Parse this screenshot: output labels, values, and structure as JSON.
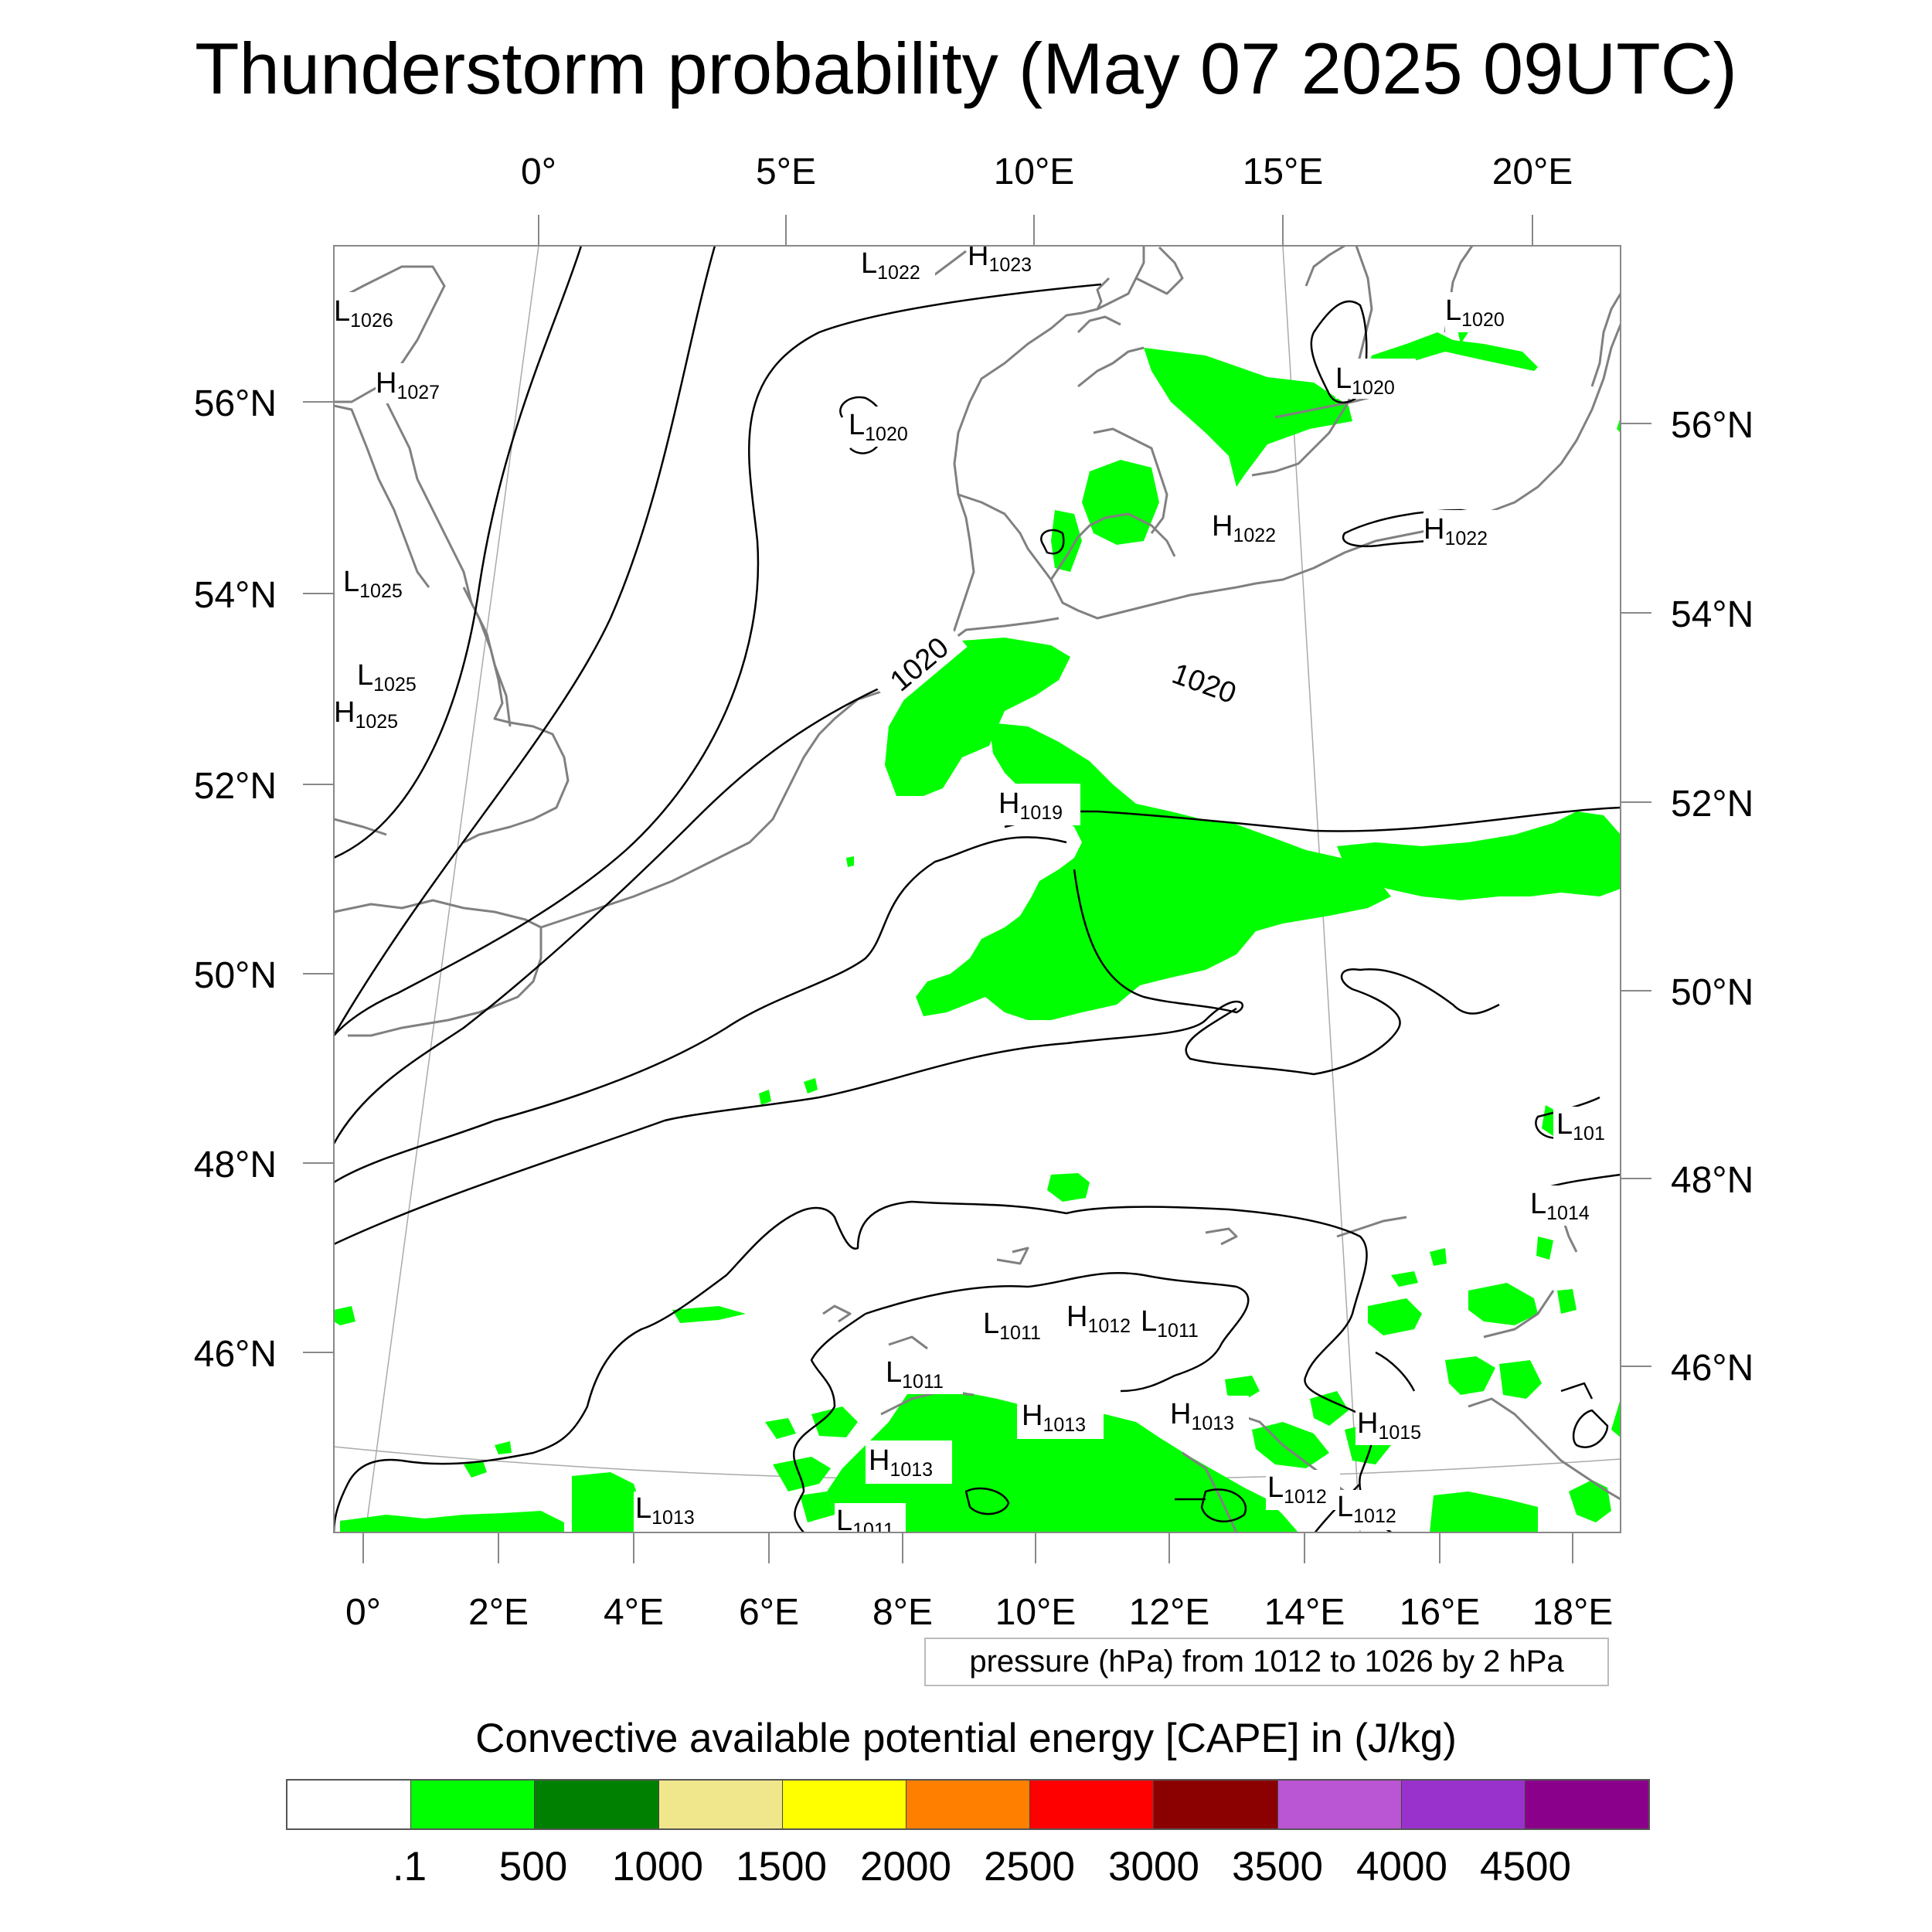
{
  "title": "Thunderstorm probability (May 07 2025 09UTC)",
  "axes": {
    "top_lon_labels": [
      "0°",
      "5°E",
      "10°E",
      "15°E",
      "20°E"
    ],
    "bottom_lon_labels": [
      "0°",
      "2°E",
      "4°E",
      "6°E",
      "8°E",
      "10°E",
      "12°E",
      "14°E",
      "16°E",
      "18°E"
    ],
    "left_lat_labels": [
      "56°N",
      "54°N",
      "52°N",
      "50°N",
      "48°N",
      "46°N"
    ],
    "right_lat_labels": [
      "56°N",
      "54°N",
      "52°N",
      "50°N",
      "48°N",
      "46°N"
    ]
  },
  "pressure_centers": [
    {
      "t": "L",
      "v": "1022"
    },
    {
      "t": "H",
      "v": "1023"
    },
    {
      "t": "L",
      "v": "1026"
    },
    {
      "t": "H",
      "v": "1027"
    },
    {
      "t": "L",
      "v": "1020"
    },
    {
      "t": "L",
      "v": "1020"
    },
    {
      "t": "L",
      "v": "1020"
    },
    {
      "t": "H",
      "v": "1022"
    },
    {
      "t": "H",
      "v": "1022"
    },
    {
      "t": "L",
      "v": "1025"
    },
    {
      "t": "L",
      "v": "1025"
    },
    {
      "t": "H",
      "v": "1025"
    },
    {
      "t": "H",
      "v": "1019"
    },
    {
      "t": "L",
      "v": "101"
    },
    {
      "t": "L",
      "v": "1014"
    },
    {
      "t": "L",
      "v": "1011"
    },
    {
      "t": "H",
      "v": "1012"
    },
    {
      "t": "L",
      "v": "1011"
    },
    {
      "t": "L",
      "v": "1011"
    },
    {
      "t": "H",
      "v": "1013"
    },
    {
      "t": "H",
      "v": "1013"
    },
    {
      "t": "H",
      "v": "1015"
    },
    {
      "t": "H",
      "v": "1013"
    },
    {
      "t": "L",
      "v": "1013"
    },
    {
      "t": "L",
      "v": "1012"
    },
    {
      "t": "L",
      "v": "1012"
    },
    {
      "t": "L",
      "v": "1011"
    }
  ],
  "isobar_labels": [
    "1020",
    "1020"
  ],
  "pressure_note": "pressure (hPa) from 1012 to 1026 by 2 hPa",
  "colorbar": {
    "title": "Convective available potential energy [CAPE] in (J/kg)",
    "colors": [
      "#ffffff",
      "#00ff00",
      "#008000",
      "#f0e68c",
      "#ffff00",
      "#ff8000",
      "#ff0000",
      "#8b0000",
      "#ba55d3",
      "#9932cc",
      "#8b008b"
    ],
    "labels": [
      ".1",
      "500",
      "1000",
      "1500",
      "2000",
      "2500",
      "3000",
      "3500",
      "4000",
      "4500"
    ]
  },
  "colors": {
    "coast": "#808080",
    "isobar": "#000000",
    "cape_low": "#00ff00"
  }
}
